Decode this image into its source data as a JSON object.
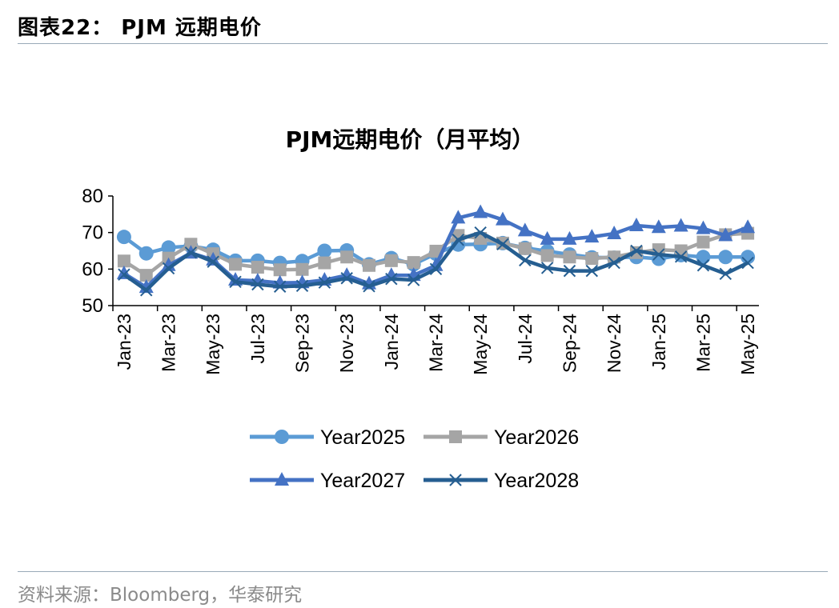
{
  "header": {
    "title": "图表22：  PJM 远期电价"
  },
  "footer": {
    "source": "资料来源：Bloomberg，华泰研究"
  },
  "chart_data": {
    "type": "line",
    "title": "PJM远期电价（月平均）",
    "xlabel": "",
    "ylabel": "",
    "ylim": [
      50,
      80
    ],
    "yticks": [
      50,
      60,
      70,
      80
    ],
    "grid": false,
    "legend_position": "bottom",
    "x": [
      "Jan-23",
      "Feb-23",
      "Mar-23",
      "Apr-23",
      "May-23",
      "Jun-23",
      "Jul-23",
      "Aug-23",
      "Sep-23",
      "Oct-23",
      "Nov-23",
      "Dec-23",
      "Jan-24",
      "Feb-24",
      "Mar-24",
      "Apr-24",
      "May-24",
      "Jun-24",
      "Jul-24",
      "Aug-24",
      "Sep-24",
      "Oct-24",
      "Nov-24",
      "Dec-24",
      "Jan-25",
      "Feb-25",
      "Mar-25",
      "Apr-25",
      "May-25"
    ],
    "xtick_labels": [
      "Jan-23",
      "Mar-23",
      "May-23",
      "Jul-23",
      "Sep-23",
      "Nov-23",
      "Jan-24",
      "Mar-24",
      "May-24",
      "Jul-24",
      "Sep-24",
      "Nov-24",
      "Jan-25",
      "Mar-25",
      "May-25"
    ],
    "series": [
      {
        "name": "Year2025",
        "color": "#5b9bd5",
        "marker": "circle",
        "values": [
          68.8,
          64.3,
          65.9,
          66.3,
          65.3,
          62.3,
          62.3,
          61.7,
          62.2,
          65.0,
          65.1,
          61.3,
          63.0,
          61.3,
          64.2,
          66.7,
          66.8,
          67.1,
          65.8,
          64.9,
          64.0,
          63.2,
          63.1,
          63.3,
          62.8,
          63.8,
          63.3,
          63.3,
          63.3
        ]
      },
      {
        "name": "Year2026",
        "color": "#a5a5a5",
        "marker": "square",
        "values": [
          62.2,
          58.3,
          63.0,
          66.8,
          64.2,
          61.3,
          60.5,
          59.8,
          59.9,
          61.7,
          63.3,
          61.0,
          62.3,
          61.8,
          64.9,
          69.2,
          68.4,
          67.1,
          65.6,
          63.7,
          63.3,
          62.9,
          63.3,
          64.5,
          65.3,
          65.0,
          67.4,
          69.4,
          69.8
        ]
      },
      {
        "name": "Year2027",
        "color": "#4472c4",
        "marker": "triangle",
        "values": [
          58.8,
          55.0,
          61.0,
          64.4,
          62.5,
          57.0,
          56.8,
          56.2,
          56.3,
          57.0,
          58.3,
          56.0,
          58.3,
          58.3,
          61.0,
          74.0,
          75.5,
          73.5,
          70.5,
          68.2,
          68.2,
          68.8,
          69.7,
          71.9,
          71.4,
          71.8,
          71.1,
          69.2,
          71.4
        ]
      },
      {
        "name": "Year2028",
        "color": "#255e91",
        "marker": "x",
        "values": [
          58.5,
          54.2,
          60.2,
          64.5,
          62.0,
          56.5,
          55.8,
          55.2,
          55.4,
          56.3,
          57.5,
          55.3,
          57.3,
          57.0,
          60.0,
          68.0,
          70.0,
          66.8,
          62.4,
          60.3,
          59.5,
          59.5,
          61.7,
          65.0,
          64.0,
          63.4,
          61.0,
          58.7,
          61.7
        ]
      }
    ]
  }
}
